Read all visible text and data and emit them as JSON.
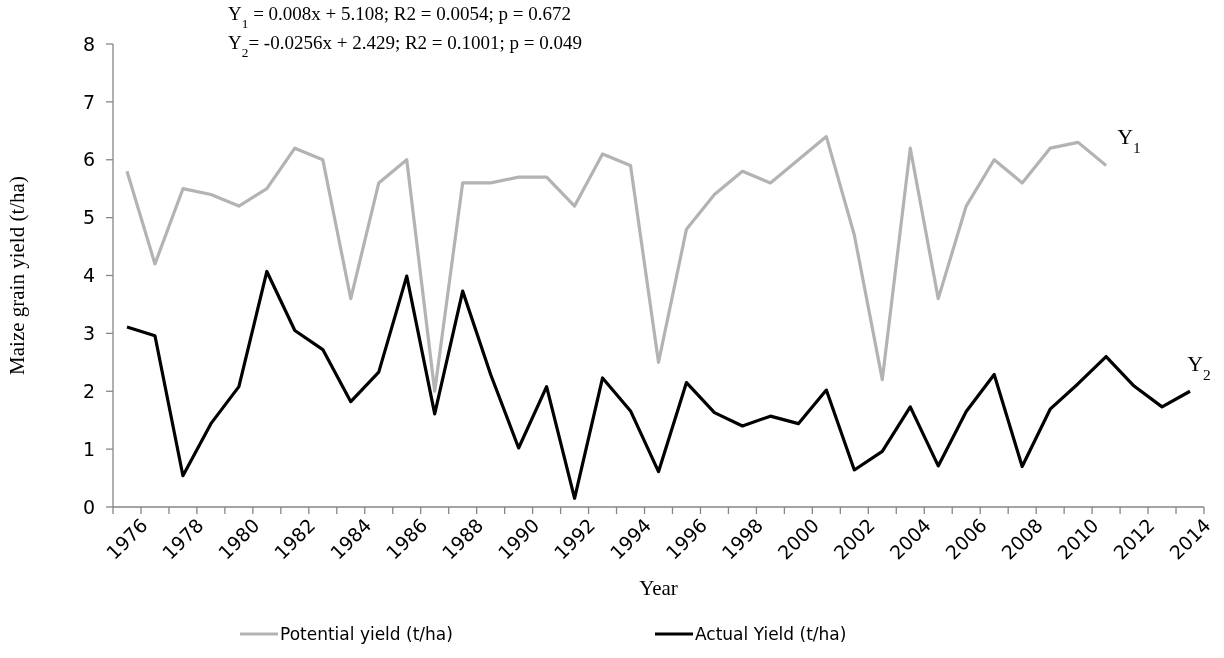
{
  "chart_data": {
    "type": "line",
    "xlabel": "Year",
    "ylabel": "Maize grain yield (t/ha)",
    "categories": [
      "1976",
      null,
      "1978",
      null,
      "1980",
      null,
      "1982",
      null,
      "1984",
      null,
      "1986",
      null,
      "1988",
      null,
      "1990",
      null,
      "1992",
      null,
      "1994",
      null,
      "1996",
      null,
      "1998",
      null,
      "2000",
      null,
      "2002",
      null,
      "2004",
      null,
      "2006",
      null,
      "2008",
      null,
      "2010",
      null,
      "2012",
      null,
      "2014"
    ],
    "series": [
      {
        "name": "Potential yield (t/ha)",
        "color": "#b3b3b3",
        "values": [
          5.8,
          4.2,
          5.5,
          5.4,
          5.2,
          5.5,
          6.2,
          6.0,
          3.6,
          5.6,
          6.0,
          2.0,
          5.6,
          5.6,
          5.7,
          5.7,
          5.2,
          6.1,
          5.9,
          2.5,
          4.8,
          5.4,
          5.8,
          5.6,
          6.0,
          6.4,
          4.7,
          2.2,
          6.2,
          3.6,
          5.2,
          6.0,
          5.6,
          6.2,
          6.3,
          5.9,
          null,
          null,
          null
        ]
      },
      {
        "name": "Actual Yield (t/ha)",
        "color": "#000000",
        "values": [
          3.11,
          2.96,
          0.54,
          1.44,
          2.08,
          4.07,
          3.05,
          2.72,
          1.82,
          2.33,
          3.99,
          1.61,
          3.73,
          2.29,
          1.02,
          2.08,
          0.15,
          2.23,
          1.66,
          0.61,
          2.15,
          1.63,
          1.4,
          1.57,
          1.44,
          2.02,
          0.64,
          0.96,
          1.73,
          0.71,
          1.65,
          2.29,
          0.7,
          1.69,
          2.13,
          2.6,
          2.09,
          1.73,
          2.0
        ]
      }
    ],
    "ylim": [
      0,
      8
    ],
    "yticks": [
      0,
      1,
      2,
      3,
      4,
      5,
      6,
      7,
      8
    ],
    "grid": false,
    "legend": "bottom",
    "marker": "none",
    "line_style": "solid",
    "annotations": [
      "Y$_{1}$ = 0.008x + 5.108; R2 = 0.0054; p = 0.672",
      "Y$_{2}$= -0.0256x + 2.429; R2 = 0.1001; p = 0.049",
      "Y$_{1}$",
      "Y$_{2}$"
    ]
  }
}
